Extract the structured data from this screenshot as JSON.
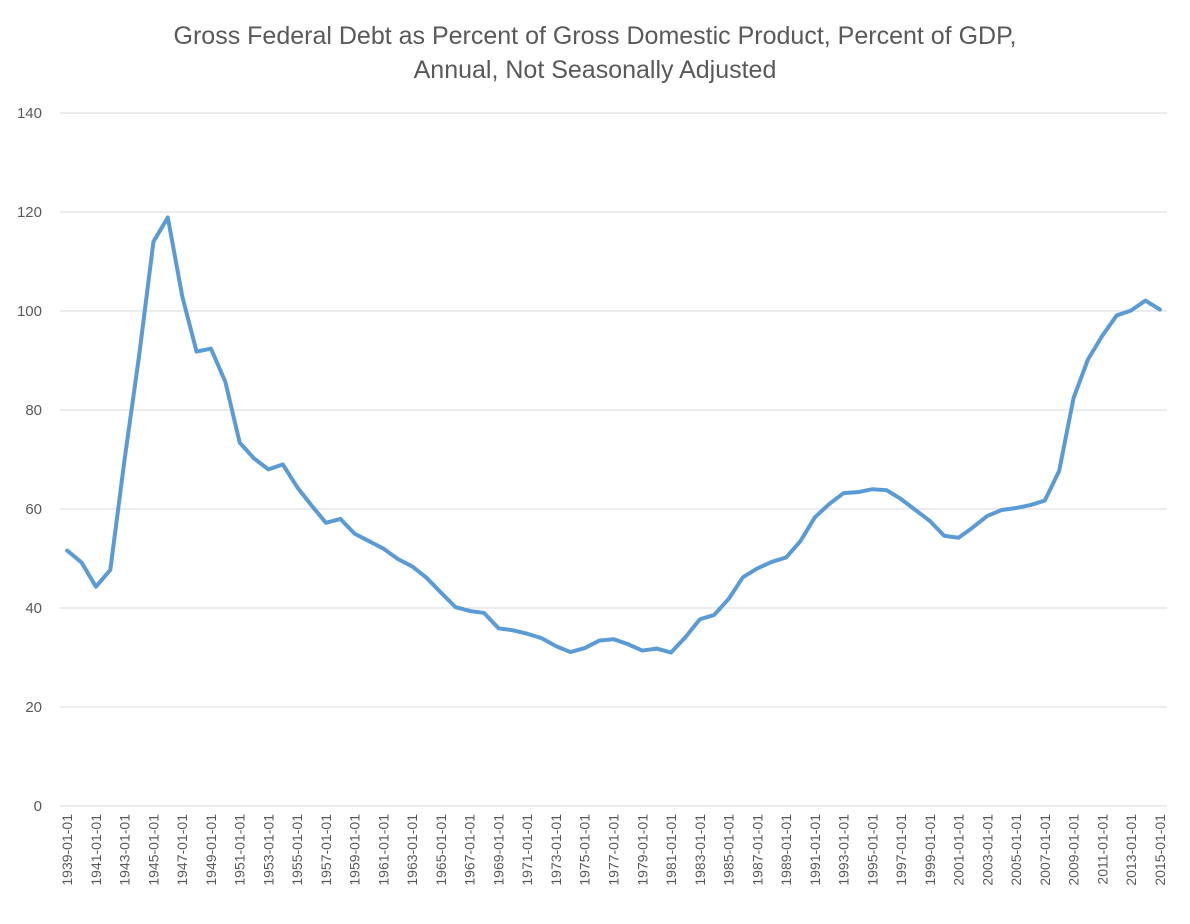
{
  "chart_data": {
    "type": "line",
    "title": "Gross Federal Debt as Percent of Gross Domestic Product, Percent of GDP, Annual, Not Seasonally Adjusted",
    "title_lines": [
      "Gross Federal Debt as Percent of Gross Domestic Product, Percent of GDP,",
      "Annual, Not Seasonally Adjusted"
    ],
    "xlabel": "",
    "ylabel": "",
    "ylim": [
      0,
      140
    ],
    "y_ticks": [
      "0",
      "20",
      "40",
      "60",
      "80",
      "100",
      "120",
      "140"
    ],
    "grid": "horizontal",
    "legend": "none",
    "line_color": "#5b9bd5",
    "grid_color": "#d9d9d9",
    "x": [
      "1939-01-01",
      "1940-01-01",
      "1941-01-01",
      "1942-01-01",
      "1943-01-01",
      "1944-01-01",
      "1945-01-01",
      "1946-01-01",
      "1947-01-01",
      "1948-01-01",
      "1949-01-01",
      "1950-01-01",
      "1951-01-01",
      "1952-01-01",
      "1953-01-01",
      "1954-01-01",
      "1955-01-01",
      "1956-01-01",
      "1957-01-01",
      "1958-01-01",
      "1959-01-01",
      "1960-01-01",
      "1961-01-01",
      "1962-01-01",
      "1963-01-01",
      "1964-01-01",
      "1965-01-01",
      "1966-01-01",
      "1967-01-01",
      "1968-01-01",
      "1969-01-01",
      "1970-01-01",
      "1971-01-01",
      "1972-01-01",
      "1973-01-01",
      "1974-01-01",
      "1975-01-01",
      "1976-01-01",
      "1977-01-01",
      "1978-01-01",
      "1979-01-01",
      "1980-01-01",
      "1981-01-01",
      "1982-01-01",
      "1983-01-01",
      "1984-01-01",
      "1985-01-01",
      "1986-01-01",
      "1987-01-01",
      "1988-01-01",
      "1989-01-01",
      "1990-01-01",
      "1991-01-01",
      "1992-01-01",
      "1993-01-01",
      "1994-01-01",
      "1995-01-01",
      "1996-01-01",
      "1997-01-01",
      "1998-01-01",
      "1999-01-01",
      "2000-01-01",
      "2001-01-01",
      "2002-01-01",
      "2003-01-01",
      "2004-01-01",
      "2005-01-01",
      "2006-01-01",
      "2007-01-01",
      "2008-01-01",
      "2009-01-01",
      "2010-01-01",
      "2011-01-01",
      "2012-01-01",
      "2013-01-01",
      "2014-01-01",
      "2015-01-01"
    ],
    "x_tick_labels": [
      "1939-01-01",
      "1941-01-01",
      "1943-01-01",
      "1945-01-01",
      "1947-01-01",
      "1949-01-01",
      "1951-01-01",
      "1953-01-01",
      "1955-01-01",
      "1957-01-01",
      "1959-01-01",
      "1961-01-01",
      "1963-01-01",
      "1965-01-01",
      "1967-01-01",
      "1969-01-01",
      "1971-01-01",
      "1973-01-01",
      "1975-01-01",
      "1977-01-01",
      "1979-01-01",
      "1981-01-01",
      "1983-01-01",
      "1985-01-01",
      "1987-01-01",
      "1989-01-01",
      "1991-01-01",
      "1993-01-01",
      "1995-01-01",
      "1997-01-01",
      "1999-01-01",
      "2001-01-01",
      "2003-01-01",
      "2005-01-01",
      "2007-01-01",
      "2009-01-01",
      "2011-01-01",
      "2013-01-01",
      "2015-01-01"
    ],
    "series": [
      {
        "values": [
          51.6,
          49.2,
          44.3,
          47.7,
          70.2,
          90.9,
          114.0,
          118.9,
          103.0,
          91.8,
          92.4,
          85.7,
          73.4,
          70.2,
          68.0,
          69.0,
          64.4,
          60.7,
          57.2,
          58.0,
          55.0,
          53.5,
          52.0,
          49.9,
          48.4,
          46.1,
          43.1,
          40.2,
          39.4,
          39.0,
          35.9,
          35.5,
          34.8,
          33.9,
          32.3,
          31.1,
          31.9,
          33.4,
          33.7,
          32.7,
          31.4,
          31.8,
          31.0,
          34.1,
          37.7,
          38.6,
          41.8,
          46.2,
          48.0,
          49.3,
          50.2,
          53.5,
          58.3,
          61.0,
          63.2,
          63.4,
          64.0,
          63.8,
          62.0,
          59.8,
          57.6,
          54.6,
          54.2,
          56.3,
          58.6,
          59.8,
          60.2,
          60.8,
          61.7,
          67.7,
          82.4,
          90.2,
          95.0,
          99.1,
          100.1,
          102.1,
          100.3
        ]
      }
    ]
  }
}
